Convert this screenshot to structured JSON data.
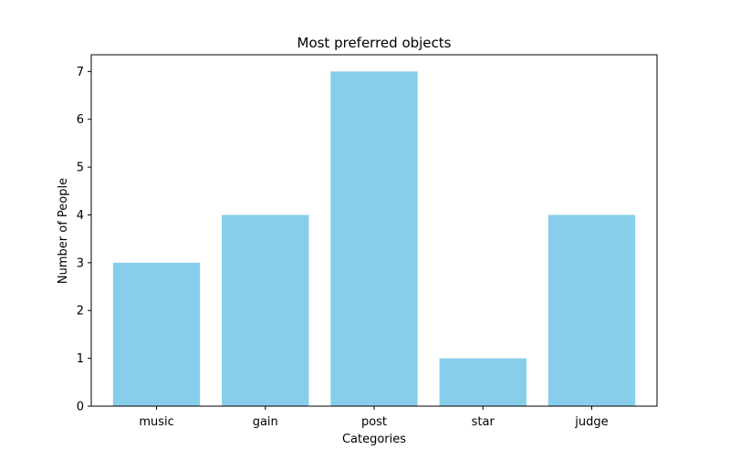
{
  "chart_data": {
    "type": "bar",
    "title": "Most preferred objects",
    "xlabel": "Categories",
    "ylabel": "Number of People",
    "categories": [
      "music",
      "gain",
      "post",
      "star",
      "judge"
    ],
    "values": [
      3,
      4,
      7,
      1,
      4
    ],
    "ylim": [
      0,
      7.35
    ],
    "yticks": [
      0,
      1,
      2,
      3,
      4,
      5,
      6,
      7
    ],
    "grid": false,
    "bar_color": "#87CEEB"
  }
}
